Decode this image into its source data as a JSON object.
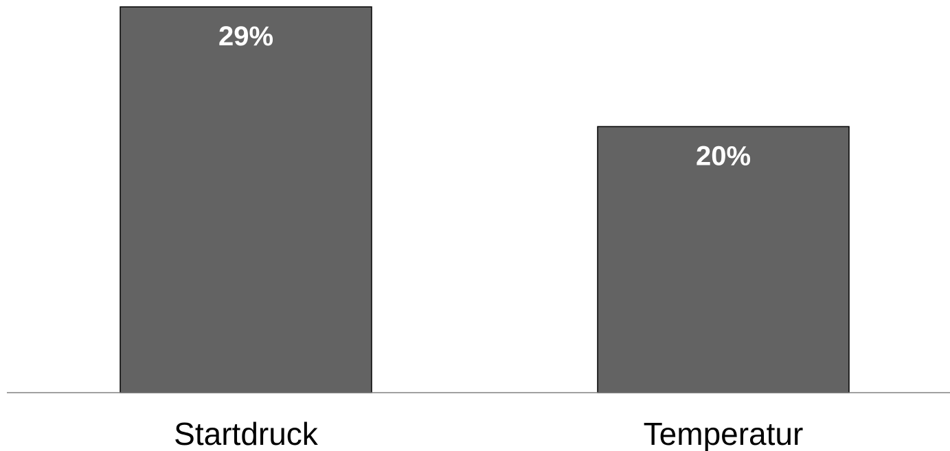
{
  "chart_data": {
    "type": "bar",
    "categories": [
      "Startdruck",
      "Temperatur"
    ],
    "values": [
      29,
      20
    ],
    "value_labels": [
      "29%",
      "20%"
    ],
    "title": "",
    "xlabel": "",
    "ylabel": "",
    "ylim": [
      0,
      29
    ],
    "grid": false,
    "legend": "none",
    "colors": {
      "bar_fill": "#636363",
      "bar_stroke": "#000000",
      "value_label": "#ffffff",
      "axis": "#808080"
    }
  }
}
